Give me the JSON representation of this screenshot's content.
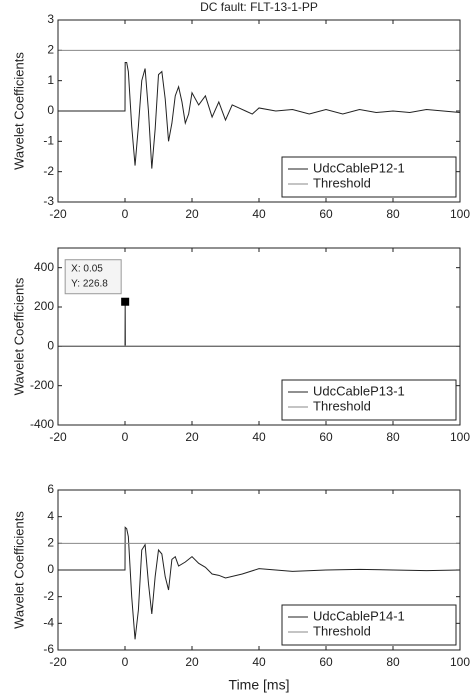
{
  "chart_data": [
    {
      "type": "line",
      "title": "DC fault: FLT-13-1-PP",
      "ylabel": "Wavelet Coefficients",
      "xlim": [
        -20,
        100
      ],
      "ylim": [
        -3,
        3
      ],
      "xticks": [
        -20,
        0,
        20,
        40,
        60,
        80,
        100
      ],
      "yticks": [
        -3,
        -2,
        -1,
        0,
        1,
        2,
        3
      ],
      "legend": "lower right",
      "series": [
        {
          "name": "UdcCableP12-1",
          "color": "#222222",
          "x": [
            -20,
            0,
            0.05,
            0.5,
            1,
            2,
            3,
            4,
            5,
            6,
            7,
            8,
            9,
            10,
            11,
            12,
            13,
            14,
            15,
            16,
            17,
            18,
            19,
            20,
            22,
            24,
            26,
            28,
            30,
            32,
            34,
            36,
            38,
            40,
            45,
            50,
            55,
            60,
            65,
            70,
            75,
            80,
            85,
            90,
            95,
            100
          ],
          "values": [
            0,
            0,
            1.6,
            1.6,
            1.3,
            -0.5,
            -1.8,
            -0.5,
            1.0,
            1.4,
            0.0,
            -1.9,
            -0.6,
            1.2,
            1.3,
            0.4,
            -1.0,
            -0.4,
            0.5,
            0.8,
            0.3,
            -0.4,
            -0.1,
            0.6,
            0.2,
            0.5,
            -0.2,
            0.3,
            -0.3,
            0.2,
            0.1,
            0.0,
            -0.1,
            0.1,
            0.0,
            0.05,
            -0.1,
            0.05,
            -0.1,
            0.05,
            -0.05,
            0.0,
            -0.05,
            0.05,
            0.0,
            -0.05
          ]
        },
        {
          "name": "Threshold",
          "color": "#888888",
          "x": [
            -20,
            100
          ],
          "values": [
            2,
            2
          ]
        }
      ]
    },
    {
      "type": "line",
      "ylabel": "Wavelet Coefficients",
      "xlim": [
        -20,
        100
      ],
      "ylim": [
        -400,
        500
      ],
      "xticks": [
        -20,
        0,
        20,
        40,
        60,
        80,
        100
      ],
      "yticks": [
        -400,
        -200,
        0,
        200,
        400
      ],
      "legend": "lower right",
      "datatip": {
        "series": 0,
        "point": 2,
        "lines": [
          "X: 0.05",
          "Y: 226.8"
        ]
      },
      "series": [
        {
          "name": "UdcCableP13-1",
          "color": "#222222",
          "x": [
            -20,
            0,
            0.05,
            0.1,
            100
          ],
          "values": [
            0,
            0,
            226.8,
            0,
            0
          ]
        },
        {
          "name": "Threshold",
          "color": "#888888",
          "x": [
            -20,
            100
          ],
          "values": [
            2,
            2
          ]
        }
      ]
    },
    {
      "type": "line",
      "ylabel": "Wavelet Coefficients",
      "xlabel": "Time [ms]",
      "xlim": [
        -20,
        100
      ],
      "ylim": [
        -6,
        6
      ],
      "xticks": [
        -20,
        0,
        20,
        40,
        60,
        80,
        100
      ],
      "yticks": [
        -6,
        -4,
        -2,
        0,
        2,
        4,
        6
      ],
      "legend": "lower right",
      "series": [
        {
          "name": "UdcCableP14-1",
          "color": "#222222",
          "x": [
            -20,
            0,
            0.05,
            0.5,
            1,
            2,
            3,
            4,
            5,
            6,
            7,
            8,
            9,
            10,
            11,
            12,
            13,
            14,
            15,
            16,
            18,
            20,
            22,
            24,
            26,
            28,
            30,
            35,
            40,
            45,
            50,
            60,
            70,
            80,
            90,
            100
          ],
          "values": [
            0,
            0,
            3.2,
            3.1,
            2.5,
            -2,
            -5.2,
            -3,
            1.5,
            1.9,
            -1.0,
            -3.3,
            -0.5,
            1.5,
            1.2,
            -0.5,
            -1.5,
            0.8,
            1.0,
            0.3,
            0.6,
            1.0,
            0.5,
            0.2,
            -0.3,
            -0.4,
            -0.6,
            -0.3,
            0.1,
            0.0,
            -0.1,
            0.0,
            0.05,
            0.0,
            -0.05,
            0.0
          ]
        },
        {
          "name": "Threshold",
          "color": "#888888",
          "x": [
            -20,
            100
          ],
          "values": [
            2,
            2
          ]
        }
      ]
    }
  ]
}
